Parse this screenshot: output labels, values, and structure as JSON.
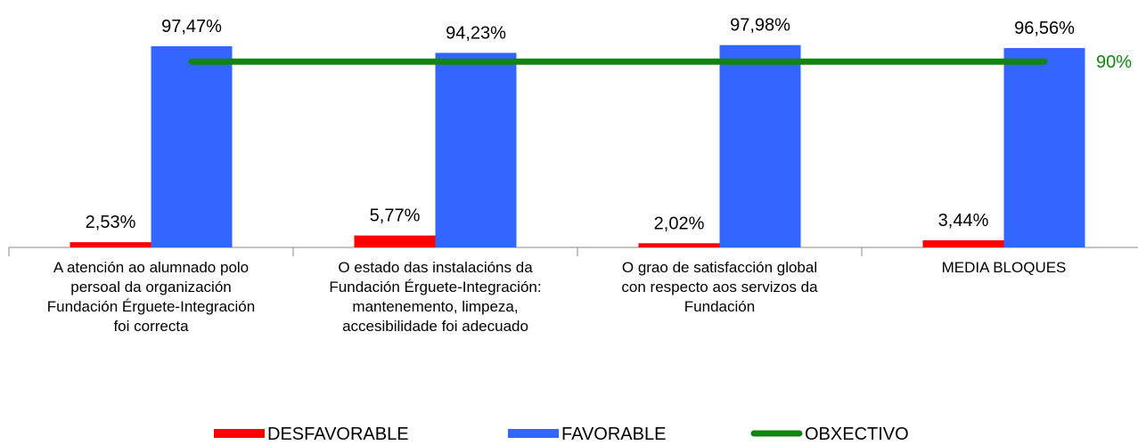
{
  "chart_data": {
    "type": "bar",
    "categories": [
      "A atención ao alumnado polo\npersoal da organización\nFundación Érguete-Integración\nfoi correcta",
      "O estado das instalacións da\nFundación Érguete-Integración:\nmantenemento, limpeza,\naccesibilidade foi adecuado",
      "O grao de satisfacción global\ncon respecto aos servizos da\nFundación",
      "MEDIA BLOQUES"
    ],
    "series": [
      {
        "name": "DESFAVORABLE",
        "color": "#ff0000",
        "values": [
          2.53,
          5.77,
          2.02,
          3.44
        ],
        "value_labels": [
          "2,53%",
          "5,77%",
          "2,02%",
          "3,44%"
        ]
      },
      {
        "name": "FAVORABLE",
        "color": "#3366ff",
        "values": [
          97.47,
          94.23,
          97.98,
          96.56
        ],
        "value_labels": [
          "97,47%",
          "94,23%",
          "97,98%",
          "96,56%"
        ]
      },
      {
        "name": "OBXECTIVO",
        "color": "#138413",
        "type": "line",
        "values": [
          90,
          90,
          90,
          90
        ],
        "value_labels": [
          null,
          null,
          null,
          "90%"
        ]
      }
    ],
    "ylim": [
      0,
      100
    ],
    "grid": false,
    "legend": "bottom"
  }
}
